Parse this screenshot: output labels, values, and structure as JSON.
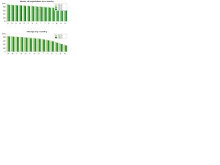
{
  "chart_data": [
    {
      "type": "bar",
      "title": "Share of population by country",
      "categories": [
        "A",
        "B",
        "C",
        "D",
        "E",
        "F",
        "G",
        "H",
        "I",
        "J",
        "K",
        "L",
        "M",
        "N",
        "O"
      ],
      "series": [
        {
          "name": "2010",
          "color": "#b5dc7a",
          "values": [
            96,
            94,
            93,
            91,
            90,
            88,
            87,
            85,
            84,
            82,
            80,
            78,
            76,
            74,
            71
          ]
        },
        {
          "name": "2015",
          "color": "#4caf50",
          "values": [
            94,
            92,
            91,
            90,
            88,
            86,
            85,
            83,
            82,
            80,
            78,
            76,
            74,
            72,
            69
          ]
        },
        {
          "name": "2020",
          "color": "#1b7a3a",
          "values": [
            92,
            90,
            89,
            88,
            86,
            84,
            83,
            81,
            80,
            78,
            76,
            74,
            72,
            70,
            67
          ]
        }
      ],
      "ylim": [
        0,
        100
      ],
      "yticks": [
        0,
        20,
        40,
        60,
        80,
        100
      ],
      "grid": true,
      "legend": "top-right"
    },
    {
      "type": "bar",
      "title": "Change by country",
      "categories": [
        "A",
        "B",
        "C",
        "D",
        "E",
        "F",
        "G",
        "H",
        "I",
        "J",
        "K",
        "L",
        "M",
        "N"
      ],
      "series": [
        {
          "name": "2010",
          "color": "#b5dc7a",
          "values": [
            88,
            86,
            84,
            82,
            80,
            78,
            76,
            74,
            70,
            66,
            60,
            54,
            46,
            38
          ]
        },
        {
          "name": "2020",
          "color": "#2e8b3e",
          "values": [
            85,
            83,
            81,
            80,
            78,
            75,
            73,
            71,
            67,
            63,
            57,
            50,
            42,
            34
          ]
        }
      ],
      "ylim": [
        0,
        100
      ],
      "yticks": [
        0,
        20,
        40,
        60,
        80,
        100
      ],
      "grid": true,
      "legend": "top-right"
    }
  ]
}
